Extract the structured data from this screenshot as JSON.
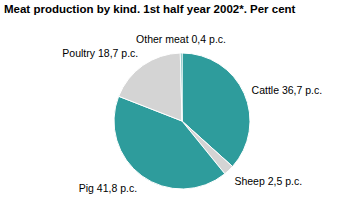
{
  "chart_data": {
    "type": "pie",
    "title": "Meat production by kind. 1st half year 2002*. Per cent",
    "categories": [
      "Cattle",
      "Sheep",
      "Pig",
      "Poultry",
      "Other meat"
    ],
    "values": [
      36.7,
      2.5,
      41.8,
      18.7,
      0.4
    ],
    "value_labels": [
      "36,7 p.c.",
      "2,5 p.c.",
      "41,8 p.c.",
      "18,7 p.c.",
      "0,4 p.c."
    ],
    "colors": [
      "#2e9c9c",
      "#d4d4d4",
      "#2e9c9c",
      "#d4d4d4",
      "#2e9c9c"
    ],
    "data_labels": true
  }
}
